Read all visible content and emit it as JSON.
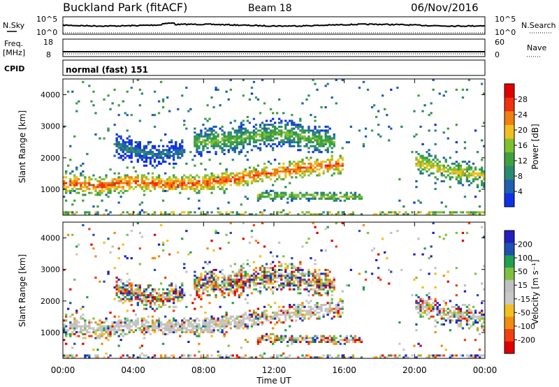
{
  "header": {
    "title": "Buckland Park (fitACF)",
    "beam": "Beam 18",
    "date": "06/Nov/2016"
  },
  "panels": {
    "sky": {
      "left_label": "N.Sky",
      "right_label": "N.Search",
      "ticks_left": [
        "10^5",
        "10^0"
      ],
      "ticks_right": [
        "10^5",
        "10^0"
      ]
    },
    "freq": {
      "left_label_1": "Freq.",
      "left_label_2": "[MHz]",
      "right_label": "Nave",
      "ticks_left": [
        "18",
        "8"
      ],
      "ticks_right": [
        "60",
        "0"
      ]
    },
    "cpid": {
      "label": "CPID",
      "text": "normal (fast) 151"
    }
  },
  "colors": {
    "power_scale": [
      "#1030e8",
      "#2060b0",
      "#2a8a70",
      "#40a040",
      "#80c030",
      "#f0c020",
      "#f08010",
      "#f03010",
      "#e00000"
    ],
    "velocity_scale": [
      "#e00000",
      "#f04010",
      "#f08c10",
      "#f0c020",
      "#c8c8c8",
      "#c0c0c0",
      "#80c040",
      "#20a050",
      "#2050b0",
      "#2020c0"
    ]
  },
  "chart_data": [
    {
      "type": "heatmap",
      "name": "power",
      "xlabel": "",
      "ylabel": "Slant Range [km]",
      "xlim": [
        0,
        24
      ],
      "ylim": [
        180,
        4500
      ],
      "yticks": [
        1000,
        2000,
        3000,
        4000
      ],
      "colorbar": {
        "label": "Power [dB]",
        "ticks": [
          "4",
          "8",
          "12",
          "16",
          "20",
          "24",
          "28"
        ],
        "range": [
          0,
          30
        ]
      },
      "bands": [
        {
          "t": [
            0,
            2,
            4,
            6,
            8,
            10,
            12,
            14,
            16
          ],
          "range": [
            1200,
            1100,
            1250,
            1150,
            1200,
            1350,
            1550,
            1700,
            1800
          ],
          "width": 200,
          "value": 24
        },
        {
          "t": [
            11,
            13,
            15,
            17
          ],
          "range": [
            800,
            800,
            780,
            750
          ],
          "width": 100,
          "value": 16
        },
        {
          "t": [
            7.5,
            10,
            12.5,
            15.5
          ],
          "range": [
            2500,
            2600,
            2800,
            2450
          ],
          "width": 300,
          "value": 14
        },
        {
          "t": [
            3,
            5,
            7
          ],
          "range": [
            2400,
            2100,
            2200
          ],
          "width": 250,
          "value": 8
        },
        {
          "t": [
            20,
            21.5,
            23,
            24
          ],
          "range": [
            1900,
            1650,
            1500,
            1400
          ],
          "width": 250,
          "value": 18
        }
      ]
    },
    {
      "type": "heatmap",
      "name": "velocity",
      "xlabel": "Time UT",
      "ylabel": "Slant Range [km]",
      "xlim": [
        0,
        24
      ],
      "ylim": [
        180,
        4500
      ],
      "yticks": [
        1000,
        2000,
        3000,
        4000
      ],
      "xticks": [
        "00:00",
        "04:00",
        "08:00",
        "12:00",
        "16:00",
        "20:00",
        "00:00"
      ],
      "colorbar": {
        "label": "Velocity [m s⁻¹]",
        "ticks": [
          "200",
          "100",
          "50",
          "15",
          "-15",
          "-50",
          "-100",
          "-200"
        ],
        "range": [
          -250,
          250
        ]
      }
    }
  ]
}
